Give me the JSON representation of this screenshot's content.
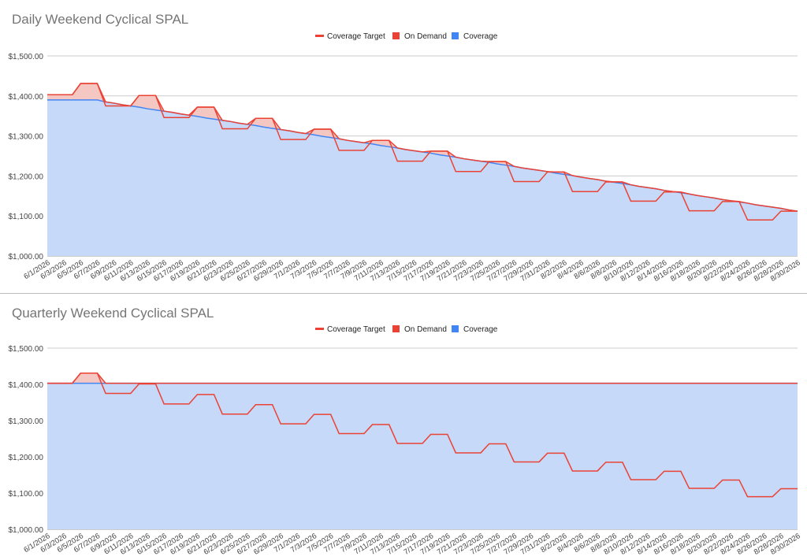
{
  "colors": {
    "target": "#ea4335",
    "on_demand": "#ea4335",
    "on_demand_fill": "#f4c7c3",
    "coverage": "#4285f4",
    "coverage_fill": "#c6d9f8",
    "grid": "#cccccc",
    "axis_text": "#444444",
    "title": "#757575"
  },
  "x_tick_labels": [
    "6/1/2026",
    "6/3/2026",
    "6/5/2026",
    "6/7/2026",
    "6/9/2026",
    "6/11/2026",
    "6/13/2026",
    "6/15/2026",
    "6/17/2026",
    "6/19/2026",
    "6/21/2026",
    "6/23/2026",
    "6/25/2026",
    "6/27/2026",
    "6/29/2026",
    "7/1/2026",
    "7/3/2026",
    "7/5/2026",
    "7/7/2026",
    "7/9/2026",
    "7/11/2026",
    "7/13/2026",
    "7/15/2026",
    "7/17/2026",
    "7/19/2026",
    "7/21/2026",
    "7/23/2026",
    "7/25/2026",
    "7/27/2026",
    "7/29/2026",
    "7/31/2026",
    "8/2/2026",
    "8/4/2026",
    "8/6/2026",
    "8/8/2026",
    "8/10/2026",
    "8/12/2026",
    "8/14/2026",
    "8/16/2026",
    "8/18/2026",
    "8/20/2026",
    "8/22/2026",
    "8/24/2026",
    "8/26/2026",
    "8/28/2026",
    "8/30/2026"
  ],
  "chart_data": [
    {
      "type": "area",
      "title": "Daily Weekend Cyclical SPAL",
      "legend": [
        "Coverage Target",
        "On Demand",
        "Coverage"
      ],
      "legend_position": "top",
      "y_ticks": [
        "$1,000.00",
        "$1,100.00",
        "$1,200.00",
        "$1,300.00",
        "$1,400.00",
        "$1,500.00"
      ],
      "ylim": [
        1000,
        1500
      ],
      "x_start": "6/1/2026",
      "x_end": "8/30/2026",
      "days": 91,
      "series": [
        {
          "name": "Coverage",
          "values": [
            1390,
            1390,
            1390,
            1390,
            1390,
            1390,
            1390,
            1385,
            1382,
            1378,
            1375,
            1372,
            1368,
            1365,
            1362,
            1359,
            1355,
            1352,
            1349,
            1345,
            1342,
            1339,
            1336,
            1332,
            1329,
            1326,
            1322,
            1319,
            1316,
            1313,
            1309,
            1306,
            1303,
            1299,
            1296,
            1293,
            1289,
            1286,
            1283,
            1280,
            1276,
            1273,
            1270,
            1266,
            1263,
            1260,
            1257,
            1253,
            1250,
            1247,
            1243,
            1240,
            1237,
            1234,
            1230,
            1227,
            1224,
            1220,
            1217,
            1214,
            1211,
            1207,
            1204,
            1201,
            1197,
            1194,
            1191,
            1187,
            1184,
            1181,
            1178,
            1174,
            1171,
            1168,
            1164,
            1161,
            1158,
            1155,
            1151,
            1148,
            1145,
            1141,
            1138,
            1135,
            1132,
            1128,
            1125,
            1122,
            1119,
            1115,
            1112
          ]
        },
        {
          "name": "On Demand",
          "values": [
            13,
            13,
            13,
            13,
            41,
            41,
            41,
            0,
            0,
            0,
            0,
            29,
            33,
            36,
            0,
            0,
            0,
            0,
            23,
            27,
            30,
            0,
            0,
            0,
            0,
            18,
            22,
            25,
            0,
            0,
            0,
            0,
            14,
            18,
            21,
            0,
            0,
            0,
            0,
            9,
            13,
            16,
            0,
            0,
            0,
            0,
            5,
            9,
            12,
            0,
            0,
            0,
            0,
            2,
            6,
            9,
            0,
            0,
            0,
            0,
            0,
            3,
            6,
            0,
            0,
            0,
            0,
            0,
            1,
            4,
            0,
            0,
            0,
            0,
            0,
            0,
            2,
            0,
            0,
            0,
            0,
            0,
            0,
            1,
            0,
            0,
            0,
            0,
            0,
            0,
            0
          ]
        },
        {
          "name": "Coverage Target",
          "values": [
            1403,
            1403,
            1403,
            1403,
            1431,
            1431,
            1431,
            1375,
            1375,
            1375,
            1375,
            1401,
            1401,
            1401,
            1346,
            1346,
            1346,
            1346,
            1372,
            1372,
            1372,
            1318,
            1318,
            1318,
            1318,
            1344,
            1344,
            1344,
            1291,
            1291,
            1291,
            1291,
            1317,
            1317,
            1317,
            1264,
            1264,
            1264,
            1264,
            1289,
            1289,
            1289,
            1237,
            1237,
            1237,
            1237,
            1262,
            1262,
            1262,
            1211,
            1211,
            1211,
            1211,
            1236,
            1236,
            1236,
            1186,
            1186,
            1186,
            1186,
            1210,
            1210,
            1210,
            1161,
            1161,
            1161,
            1161,
            1185,
            1185,
            1185,
            1137,
            1137,
            1137,
            1137,
            1160,
            1160,
            1160,
            1113,
            1113,
            1113,
            1113,
            1136,
            1136,
            1136,
            1090,
            1090,
            1090,
            1090,
            1112,
            1112,
            1112
          ]
        }
      ]
    },
    {
      "type": "area",
      "title": "Quarterly Weekend Cyclical SPAL",
      "legend": [
        "Coverage Target",
        "On Demand",
        "Coverage"
      ],
      "legend_position": "top",
      "y_ticks": [
        "$1,000.00",
        "$1,100.00",
        "$1,200.00",
        "$1,300.00",
        "$1,400.00",
        "$1,500.00"
      ],
      "ylim": [
        1000,
        1500
      ],
      "x_start": "6/1/2026",
      "x_end": "8/30/2026",
      "days": 91,
      "series": [
        {
          "name": "Coverage",
          "values": [
            1403,
            1403,
            1403,
            1403,
            1403,
            1403,
            1403,
            1403,
            1403,
            1403,
            1403,
            1403,
            1403,
            1403,
            1403,
            1403,
            1403,
            1403,
            1403,
            1403,
            1403,
            1403,
            1403,
            1403,
            1403,
            1403,
            1403,
            1403,
            1403,
            1403,
            1403,
            1403,
            1403,
            1403,
            1403,
            1403,
            1403,
            1403,
            1403,
            1403,
            1403,
            1403,
            1403,
            1403,
            1403,
            1403,
            1403,
            1403,
            1403,
            1403,
            1403,
            1403,
            1403,
            1403,
            1403,
            1403,
            1403,
            1403,
            1403,
            1403,
            1403,
            1403,
            1403,
            1403,
            1403,
            1403,
            1403,
            1403,
            1403,
            1403,
            1403,
            1403,
            1403,
            1403,
            1403,
            1403,
            1403,
            1403,
            1403,
            1403,
            1403,
            1403,
            1403,
            1403,
            1403,
            1403,
            1403,
            1403,
            1403,
            1403,
            1403
          ]
        },
        {
          "name": "On Demand",
          "values": [
            0,
            0,
            0,
            0,
            28,
            28,
            28,
            0,
            0,
            0,
            0,
            0,
            0,
            0,
            0,
            0,
            0,
            0,
            0,
            0,
            0,
            0,
            0,
            0,
            0,
            0,
            0,
            0,
            0,
            0,
            0,
            0,
            0,
            0,
            0,
            0,
            0,
            0,
            0,
            0,
            0,
            0,
            0,
            0,
            0,
            0,
            0,
            0,
            0,
            0,
            0,
            0,
            0,
            0,
            0,
            0,
            0,
            0,
            0,
            0,
            0,
            0,
            0,
            0,
            0,
            0,
            0,
            0,
            0,
            0,
            0,
            0,
            0,
            0,
            0,
            0,
            0,
            0,
            0,
            0,
            0,
            0,
            0,
            0,
            0,
            0,
            0,
            0,
            0,
            0,
            0
          ]
        },
        {
          "name": "Coverage Target",
          "values": [
            1403,
            1403,
            1403,
            1403,
            1431,
            1431,
            1431,
            1375,
            1375,
            1375,
            1375,
            1401,
            1401,
            1401,
            1346,
            1346,
            1346,
            1346,
            1372,
            1372,
            1372,
            1318,
            1318,
            1318,
            1318,
            1344,
            1344,
            1344,
            1291,
            1291,
            1291,
            1291,
            1317,
            1317,
            1317,
            1264,
            1264,
            1264,
            1264,
            1289,
            1289,
            1289,
            1237,
            1237,
            1237,
            1237,
            1262,
            1262,
            1262,
            1211,
            1211,
            1211,
            1211,
            1236,
            1236,
            1236,
            1186,
            1186,
            1186,
            1186,
            1210,
            1210,
            1210,
            1161,
            1161,
            1161,
            1161,
            1185,
            1185,
            1185,
            1137,
            1137,
            1137,
            1137,
            1160,
            1160,
            1160,
            1113,
            1113,
            1113,
            1113,
            1136,
            1136,
            1136,
            1090,
            1090,
            1090,
            1090,
            1112,
            1112,
            1112
          ]
        }
      ]
    }
  ]
}
